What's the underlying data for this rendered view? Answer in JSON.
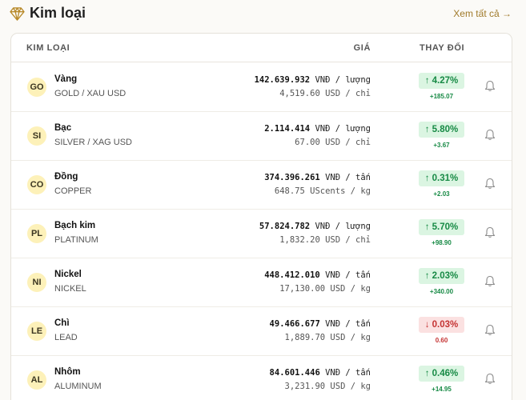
{
  "header": {
    "title": "Kim loại",
    "see_all": "Xem tất cả →"
  },
  "table": {
    "col_name": "KIM LOẠI",
    "col_price": "GIÁ",
    "col_change": "THAY ĐỔI"
  },
  "colors": {
    "up": "#178a45",
    "down": "#c53333",
    "accent": "#a07a2a",
    "symbol_bg": "#fdf1b9"
  },
  "rows": [
    {
      "sym": "GO",
      "name": "Vàng",
      "sub": "GOLD / XAU USD",
      "vnd": "142.639.932",
      "vnd_unit": "VNĐ / lượng",
      "usd": "4,519.60 USD / chỉ",
      "change": "↑ 4.27%",
      "delta": "+185.07",
      "dir": "up"
    },
    {
      "sym": "SI",
      "name": "Bạc",
      "sub": "SILVER / XAG USD",
      "vnd": "2.114.414",
      "vnd_unit": "VNĐ / lượng",
      "usd": "67.00 USD / chỉ",
      "change": "↑ 5.80%",
      "delta": "+3.67",
      "dir": "up"
    },
    {
      "sym": "CO",
      "name": "Đồng",
      "sub": "COPPER",
      "vnd": "374.396.261",
      "vnd_unit": "VNĐ / tấn",
      "usd": "648.75 UScents / kg",
      "change": "↑ 0.31%",
      "delta": "+2.03",
      "dir": "up"
    },
    {
      "sym": "PL",
      "name": "Bạch kim",
      "sub": "PLATINUM",
      "vnd": "57.824.782",
      "vnd_unit": "VNĐ / lượng",
      "usd": "1,832.20 USD / chỉ",
      "change": "↑ 5.70%",
      "delta": "+98.90",
      "dir": "up"
    },
    {
      "sym": "NI",
      "name": "Nickel",
      "sub": "NICKEL",
      "vnd": "448.412.010",
      "vnd_unit": "VNĐ / tấn",
      "usd": "17,130.00 USD / kg",
      "change": "↑ 2.03%",
      "delta": "+340.00",
      "dir": "up"
    },
    {
      "sym": "LE",
      "name": "Chì",
      "sub": "LEAD",
      "vnd": "49.466.677",
      "vnd_unit": "VNĐ / tấn",
      "usd": "1,889.70 USD / kg",
      "change": "↓ 0.03%",
      "delta": "0.60",
      "dir": "down"
    },
    {
      "sym": "AL",
      "name": "Nhôm",
      "sub": "ALUMINUM",
      "vnd": "84.601.446",
      "vnd_unit": "VNĐ / tấn",
      "usd": "3,231.90 USD / kg",
      "change": "↑ 0.46%",
      "delta": "+14.95",
      "dir": "up"
    }
  ]
}
